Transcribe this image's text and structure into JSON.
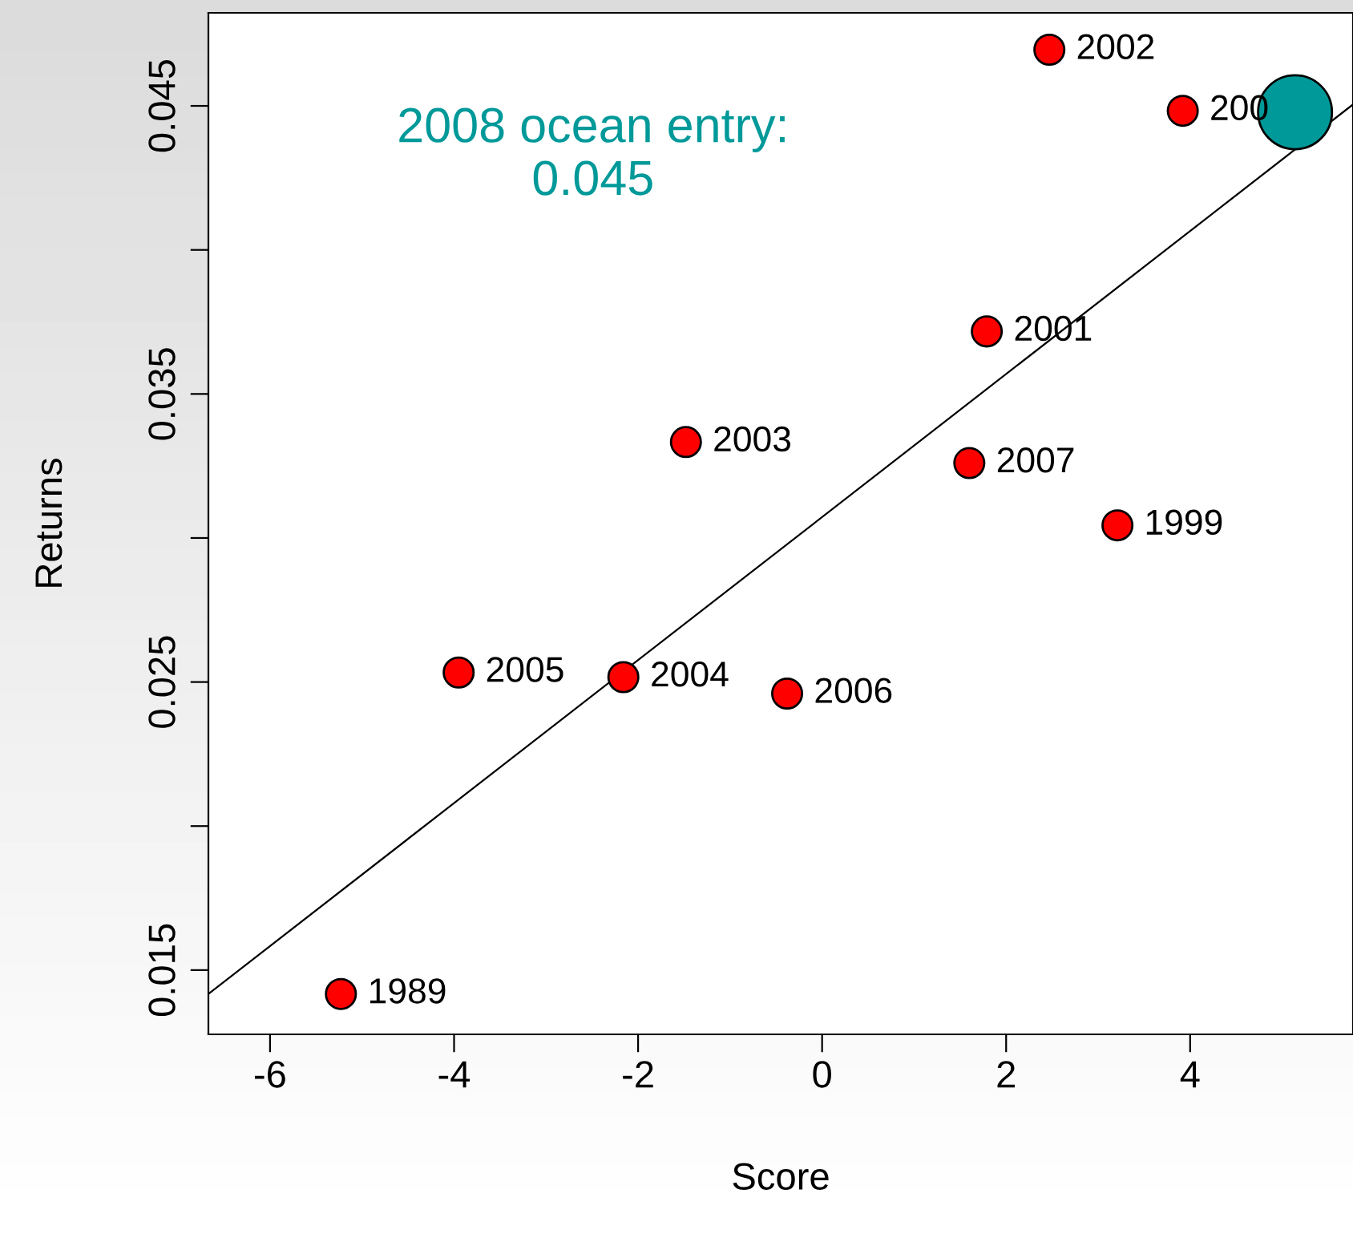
{
  "chart_data": {
    "type": "scatter",
    "xlabel": "Score",
    "ylabel": "Returns",
    "xlim": [
      -6.67,
      5.77
    ],
    "ylim": [
      0.01277,
      0.04823
    ],
    "xticks": [
      -6,
      -4,
      -2,
      0,
      2,
      4
    ],
    "yticks": [
      0.015,
      {
        "value": 0.02,
        "label": null
      },
      0.025,
      {
        "value": 0.03,
        "label": null
      },
      0.035,
      {
        "value": 0.04,
        "label": null
      },
      0.045
    ],
    "grid": false,
    "legend": false,
    "series": [
      {
        "color": "#ff0000",
        "marker": "circle",
        "x": [
          -5.23,
          -3.95,
          -2.16,
          -0.38,
          -1.48,
          1.6,
          1.79,
          3.21,
          2.47,
          3.92
        ],
        "values": [
          0.01417,
          0.02533,
          0.02517,
          0.0246,
          0.03333,
          0.0326,
          0.03717,
          0.03044,
          0.04695,
          0.04483
        ]
      },
      {
        "type": "line",
        "marker": "none",
        "color": "#000000",
        "x": [
          -6.67,
          5.77
        ],
        "values": [
          0.01417,
          0.04505
        ]
      },
      {
        "type": "bubble",
        "marker": "circle",
        "color": "#009999",
        "x": [
          5.14
        ],
        "values": [
          0.04478
        ],
        "sizes": [
          1
        ]
      }
    ],
    "annotations": [
      {
        "text": "1989",
        "x": -5.23,
        "y": 0.01417
      },
      {
        "text": "2005",
        "x": -3.95,
        "y": 0.02533
      },
      {
        "text": "2004",
        "x": -2.16,
        "y": 0.02517
      },
      {
        "text": "2006",
        "x": -0.38,
        "y": 0.0246
      },
      {
        "text": "2003",
        "x": -1.48,
        "y": 0.03333
      },
      {
        "text": "2007",
        "x": 1.6,
        "y": 0.0326
      },
      {
        "text": "2001",
        "x": 1.79,
        "y": 0.03717
      },
      {
        "text": "1999",
        "x": 3.21,
        "y": 0.03044
      },
      {
        "text": "2002",
        "x": 2.47,
        "y": 0.04695
      },
      {
        "text": "200",
        "x": 3.92,
        "y": 0.04483
      },
      "2008 ocean entry:\n0.045"
    ]
  }
}
